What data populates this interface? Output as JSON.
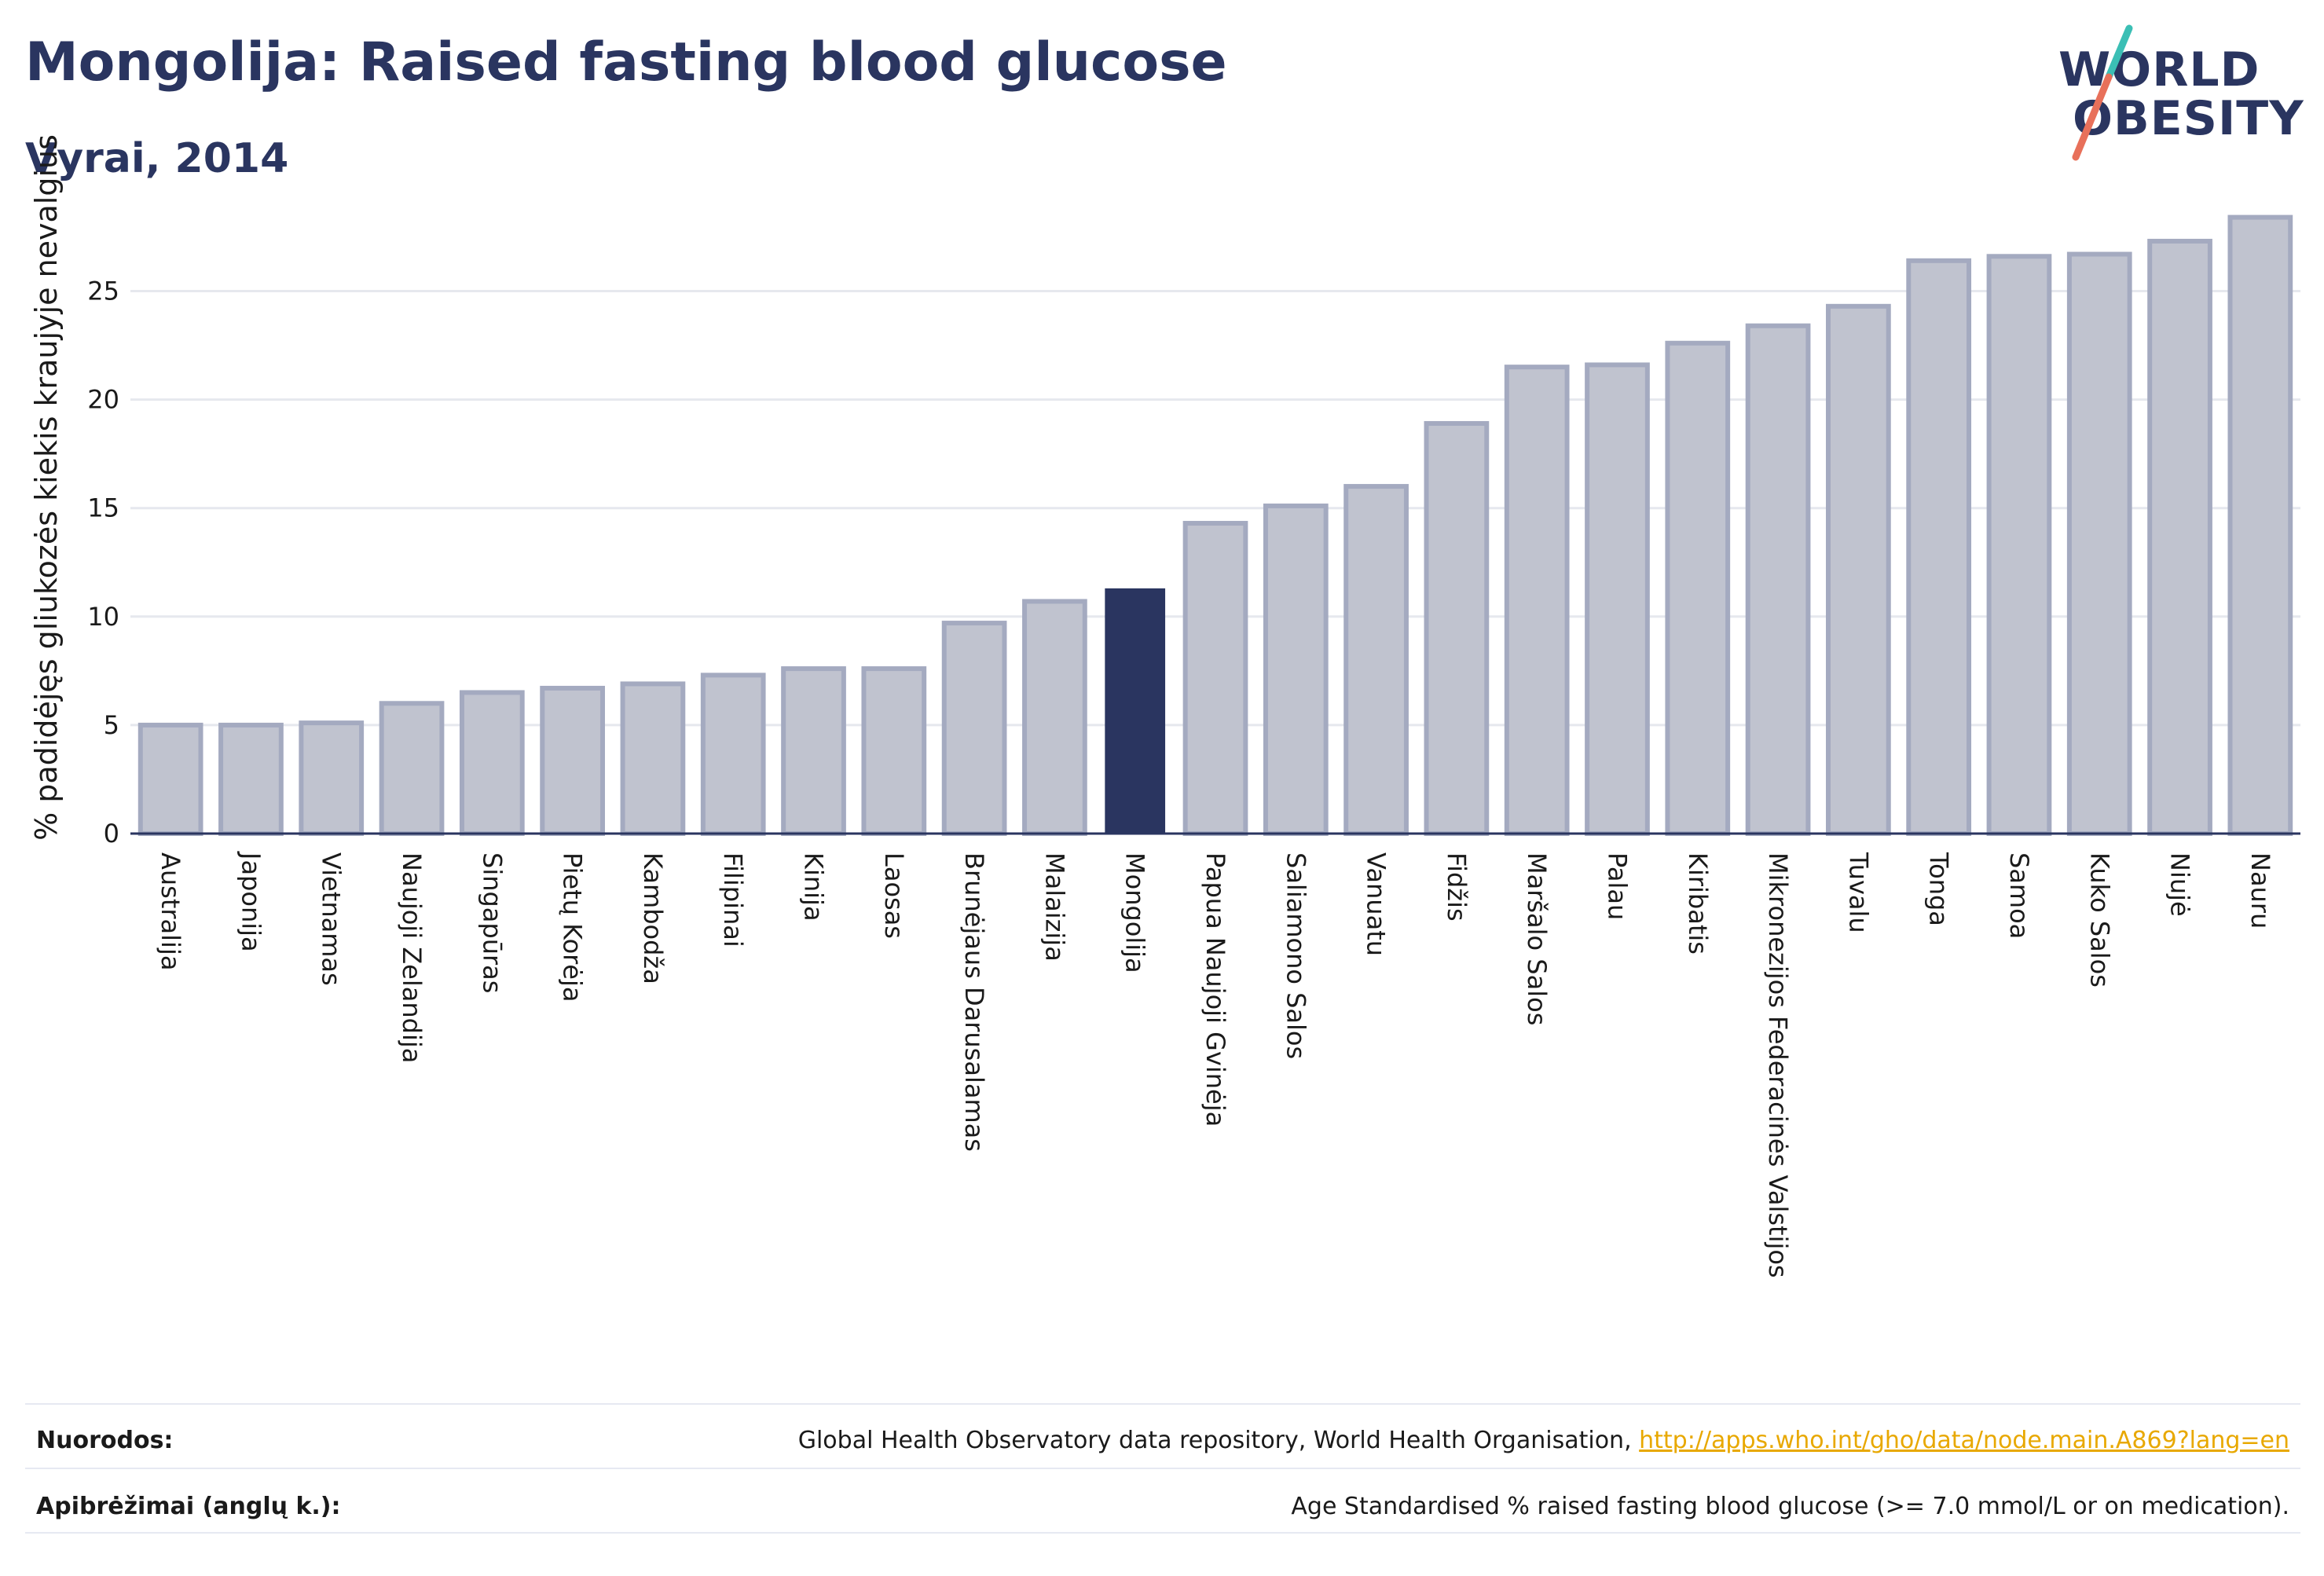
{
  "header": {
    "title": "Mongolija: Raised fasting blood glucose",
    "subtitle": "Vyrai, 2014"
  },
  "logo": {
    "line1": "WORLD",
    "line2": "OBESITY"
  },
  "chart_data": {
    "type": "bar",
    "ylabel": "% padidėjęs gliukozės kiekis kraujyje nevalgius",
    "xlabel": "",
    "ylim": [
      0,
      29
    ],
    "yticks": [
      0,
      5,
      10,
      15,
      20,
      25
    ],
    "grid": true,
    "highlight": "Mongolija",
    "colors": {
      "bar": "#c0c3cf",
      "bar_edge": "#a4aac0",
      "highlight": "#2a3560",
      "grid": "#e6e8ee",
      "axis": "#2a3560"
    },
    "categories": [
      "Australija",
      "Japonija",
      "Vietnamas",
      "Naujoji Zelandija",
      "Singapūras",
      "Pietų Korėja",
      "Kambodža",
      "Filipinai",
      "Kinija",
      "Laosas",
      "Brunėjaus Darusalamas",
      "Malaizija",
      "Mongolija",
      "Papua Naujoji Gvinėja",
      "Saliamono Salos",
      "Vanuatu",
      "Fidžis",
      "Maršalo Salos",
      "Palau",
      "Kiribatis",
      "Mikronezijos Federacinės Valstijos",
      "Tuvalu",
      "Tonga",
      "Samoa",
      "Kuko Salos",
      "Niujė",
      "Nauru"
    ],
    "values": [
      5.0,
      5.0,
      5.1,
      6.0,
      6.5,
      6.7,
      6.9,
      7.3,
      7.6,
      7.6,
      9.7,
      10.7,
      11.3,
      14.3,
      15.1,
      16.0,
      18.9,
      21.5,
      21.6,
      22.6,
      23.4,
      24.3,
      26.4,
      26.6,
      26.7,
      27.3,
      28.4
    ]
  },
  "footer": {
    "sources_label": "Nuorodos:",
    "sources_text": "Global Health Observatory data repository, World Health Organisation, ",
    "sources_link": "http://apps.who.int/gho/data/node.main.A869?lang=en",
    "definitions_label": "Apibrėžimai (anglų k.):",
    "definitions_text": "Age Standardised % raised fasting blood glucose (>= 7.0 mmol/L or on medication)."
  }
}
